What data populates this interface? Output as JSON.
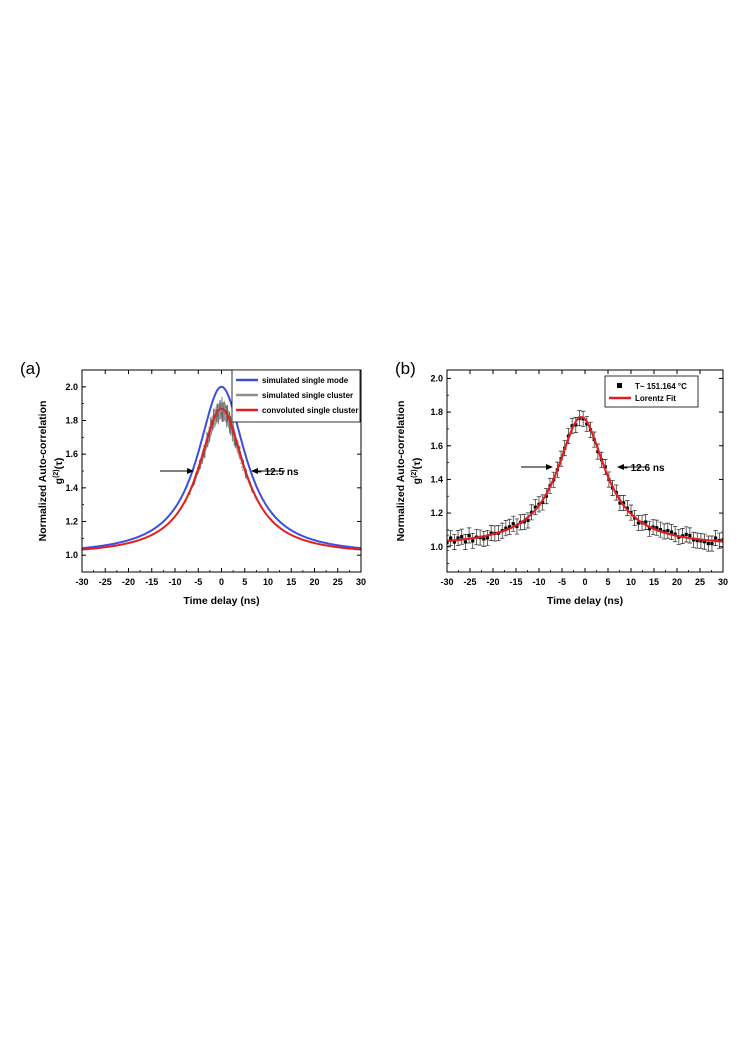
{
  "chart_data": [
    {
      "type": "line",
      "panel_label": "(a)",
      "xlabel": "Time delay (ns)",
      "ylabel": "Normalized Auto-correlation",
      "ylabel2": "g(2)(τ)",
      "xlim": [
        -30,
        30
      ],
      "ylim": [
        0.9,
        2.1
      ],
      "xticks": [
        -30,
        -25,
        -20,
        -15,
        -10,
        -5,
        0,
        5,
        10,
        15,
        20,
        25,
        30
      ],
      "yticks": [
        "1.0",
        "1.2",
        "1.4",
        "1.6",
        "1.8",
        "2.0"
      ],
      "series": [
        {
          "name": "simulated single mode",
          "color": "#3c4ee0",
          "kind": "lorentz",
          "peak": 2.0,
          "fwhm": 12.5
        },
        {
          "name": "simulated single cluster",
          "color": "#8f8f8f",
          "kind": "noisy_band",
          "peak": 1.86,
          "fwhm": 12.0
        },
        {
          "name": "convoluted single cluster",
          "color": "#e02020",
          "kind": "lorentz",
          "peak": 1.87,
          "fwhm": 12.0
        }
      ],
      "annotation": "~ 12.5 ns"
    },
    {
      "type": "scatter",
      "panel_label": "(b)",
      "xlabel": "Time delay (ns)",
      "ylabel": "Normalized Auto-correlation",
      "ylabel2": "g(2)(τ)",
      "xlim": [
        -30,
        30
      ],
      "ylim": [
        0.85,
        2.05
      ],
      "xticks": [
        -30,
        -25,
        -20,
        -15,
        -10,
        -5,
        0,
        5,
        10,
        15,
        20,
        25,
        30
      ],
      "yticks": [
        "1.0",
        "1.2",
        "1.4",
        "1.6",
        "1.8",
        "2.0"
      ],
      "series": [
        {
          "name": "T~ 151.164 °C",
          "color": "#000000",
          "kind": "points_errorbars",
          "peak": 1.77,
          "fwhm": 12.6,
          "center": -0.8,
          "step": 0.8,
          "error": 0.045
        },
        {
          "name": "Lorentz Fit",
          "color": "#e02020",
          "kind": "lorentz",
          "peak": 1.77,
          "fwhm": 12.6,
          "center": -0.8
        }
      ],
      "annotation": "~ 12.6 ns"
    }
  ]
}
